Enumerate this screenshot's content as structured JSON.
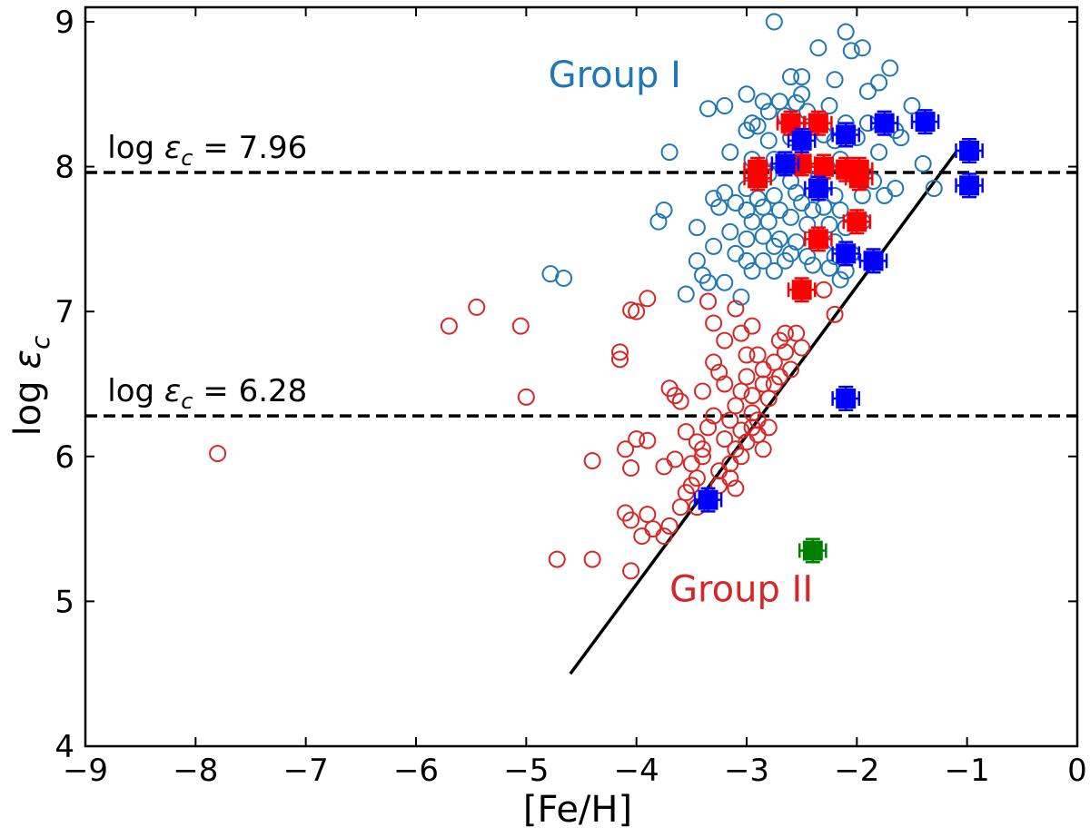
{
  "chart_data": {
    "type": "scatter",
    "xlabel": "[Fe/H]",
    "ylabel_main": "log ",
    "ylabel_symbol": "ε",
    "ylabel_sub": "c",
    "xlim": [
      -9,
      0
    ],
    "ylim": [
      4,
      9.1
    ],
    "xticks": [
      -9,
      -8,
      -7,
      -6,
      -5,
      -4,
      -3,
      -2,
      -1,
      0
    ],
    "xtick_labels": [
      "−9",
      "−8",
      "−7",
      "−6",
      "−5",
      "−4",
      "−3",
      "−2",
      "−1",
      "0"
    ],
    "yticks": [
      4,
      5,
      6,
      7,
      8,
      9
    ],
    "ytick_labels": [
      "4",
      "5",
      "6",
      "7",
      "8",
      "9"
    ],
    "colors": {
      "group1": "#1f77b4",
      "group2": "#d62728",
      "red_marker": "#ff0000",
      "blue_marker": "#0000ff",
      "green_marker": "#008000",
      "line": "#000000"
    },
    "reference_lines": [
      {
        "y": 7.96,
        "prefix": "log ",
        "symbol": "ε",
        "sub": "c",
        "text": " = 7.96",
        "label_x": -8.8
      },
      {
        "y": 6.28,
        "prefix": "log ",
        "symbol": "ε",
        "sub": "c",
        "text": " = 6.28",
        "label_x": -8.8
      }
    ],
    "trend_line": {
      "x": [
        -4.6,
        -1.1
      ],
      "y": [
        4.5,
        8.1
      ]
    },
    "annotations": [
      {
        "text": "Group I",
        "x": -4.8,
        "y": 8.55,
        "color": "#1f77b4"
      },
      {
        "text": "Group II",
        "x": -3.7,
        "y": 5.0,
        "color": "#d62728"
      }
    ],
    "series": [
      {
        "name": "Group I",
        "marker": "open-circle",
        "color": "#1f77b4",
        "points": [
          [
            -2.75,
            9.0
          ],
          [
            -2.1,
            8.93
          ],
          [
            -2.05,
            8.8
          ],
          [
            -1.95,
            8.82
          ],
          [
            -2.35,
            8.82
          ],
          [
            -1.7,
            8.68
          ],
          [
            -2.5,
            8.62
          ],
          [
            -2.6,
            8.62
          ],
          [
            -2.2,
            8.6
          ],
          [
            -1.8,
            8.58
          ],
          [
            -1.9,
            8.52
          ],
          [
            -3.0,
            8.5
          ],
          [
            -3.2,
            8.42
          ],
          [
            -2.5,
            8.5
          ],
          [
            -2.7,
            8.45
          ],
          [
            -2.8,
            8.38
          ],
          [
            -2.85,
            8.45
          ],
          [
            -2.55,
            8.44
          ],
          [
            -3.35,
            8.4
          ],
          [
            -2.25,
            8.42
          ],
          [
            -2.65,
            8.35
          ],
          [
            -2.45,
            8.38
          ],
          [
            -2.95,
            8.3
          ],
          [
            -3.0,
            8.25
          ],
          [
            -2.35,
            8.3
          ],
          [
            -2.1,
            8.3
          ],
          [
            -1.9,
            8.3
          ],
          [
            -1.5,
            8.42
          ],
          [
            -1.65,
            8.25
          ],
          [
            -2.9,
            8.28
          ],
          [
            -2.8,
            8.18
          ],
          [
            -2.6,
            8.2
          ],
          [
            -2.3,
            8.22
          ],
          [
            -2.2,
            8.18
          ],
          [
            -2.0,
            8.2
          ],
          [
            -1.6,
            8.2
          ],
          [
            -3.7,
            8.1
          ],
          [
            -3.15,
            8.1
          ],
          [
            -2.95,
            8.05
          ],
          [
            -2.75,
            8.05
          ],
          [
            -2.5,
            8.0
          ],
          [
            -2.15,
            8.05
          ],
          [
            -1.8,
            8.1
          ],
          [
            -1.4,
            8.02
          ],
          [
            -2.8,
            7.95
          ],
          [
            -2.6,
            7.9
          ],
          [
            -2.35,
            7.92
          ],
          [
            -2.05,
            7.95
          ],
          [
            -1.85,
            7.9
          ],
          [
            -1.65,
            7.85
          ],
          [
            -1.3,
            7.85
          ],
          [
            -3.0,
            7.85
          ],
          [
            -3.2,
            7.82
          ],
          [
            -2.9,
            7.78
          ],
          [
            -2.75,
            7.8
          ],
          [
            -2.55,
            7.82
          ],
          [
            -2.2,
            7.8
          ],
          [
            -1.95,
            7.8
          ],
          [
            -1.75,
            7.8
          ],
          [
            -3.3,
            7.78
          ],
          [
            -3.25,
            7.72
          ],
          [
            -3.1,
            7.75
          ],
          [
            -3.0,
            7.7
          ],
          [
            -2.85,
            7.72
          ],
          [
            -2.7,
            7.7
          ],
          [
            -2.5,
            7.75
          ],
          [
            -2.4,
            7.7
          ],
          [
            -2.3,
            7.72
          ],
          [
            -2.15,
            7.7
          ],
          [
            -3.75,
            7.7
          ],
          [
            -3.8,
            7.62
          ],
          [
            -2.95,
            7.62
          ],
          [
            -2.8,
            7.62
          ],
          [
            -2.6,
            7.65
          ],
          [
            -2.45,
            7.6
          ],
          [
            -2.25,
            7.6
          ],
          [
            -2.1,
            7.58
          ],
          [
            -1.95,
            7.62
          ],
          [
            -3.45,
            7.58
          ],
          [
            -3.15,
            7.55
          ],
          [
            -3.0,
            7.5
          ],
          [
            -2.85,
            7.52
          ],
          [
            -2.7,
            7.5
          ],
          [
            -2.55,
            7.48
          ],
          [
            -2.35,
            7.5
          ],
          [
            -2.2,
            7.48
          ],
          [
            -3.3,
            7.45
          ],
          [
            -3.1,
            7.4
          ],
          [
            -2.75,
            7.45
          ],
          [
            -2.6,
            7.4
          ],
          [
            -2.45,
            7.38
          ],
          [
            -2.2,
            7.38
          ],
          [
            -2.05,
            7.4
          ],
          [
            -3.45,
            7.35
          ],
          [
            -3.0,
            7.35
          ],
          [
            -2.85,
            7.35
          ],
          [
            -2.65,
            7.35
          ],
          [
            -2.4,
            7.32
          ],
          [
            -2.25,
            7.3
          ],
          [
            -2.75,
            7.28
          ],
          [
            -2.1,
            7.28
          ],
          [
            -3.4,
            7.25
          ],
          [
            -3.35,
            7.2
          ],
          [
            -3.2,
            7.2
          ],
          [
            -4.78,
            7.26
          ],
          [
            -4.66,
            7.23
          ],
          [
            -3.55,
            7.12
          ],
          [
            -3.05,
            7.1
          ],
          [
            -2.95,
            7.28
          ],
          [
            -2.15,
            7.22
          ]
        ]
      },
      {
        "name": "Group II",
        "marker": "open-circle",
        "color": "#d62728",
        "points": [
          [
            -7.8,
            6.02
          ],
          [
            -5.7,
            6.9
          ],
          [
            -5.45,
            7.03
          ],
          [
            -5.05,
            6.9
          ],
          [
            -5.0,
            6.41
          ],
          [
            -4.4,
            5.97
          ],
          [
            -4.72,
            5.29
          ],
          [
            -4.4,
            5.29
          ],
          [
            -4.05,
            5.21
          ],
          [
            -4.0,
            7.0
          ],
          [
            -4.05,
            7.01
          ],
          [
            -3.9,
            7.09
          ],
          [
            -4.15,
            6.72
          ],
          [
            -4.15,
            6.67
          ],
          [
            -4.1,
            6.05
          ],
          [
            -4.0,
            6.12
          ],
          [
            -4.05,
            5.92
          ],
          [
            -3.9,
            6.11
          ],
          [
            -4.1,
            5.61
          ],
          [
            -4.05,
            5.56
          ],
          [
            -3.9,
            5.6
          ],
          [
            -3.85,
            5.5
          ],
          [
            -3.75,
            5.45
          ],
          [
            -3.95,
            5.45
          ],
          [
            -3.7,
            5.52
          ],
          [
            -3.75,
            5.93
          ],
          [
            -3.65,
            5.98
          ],
          [
            -3.7,
            6.47
          ],
          [
            -3.65,
            6.42
          ],
          [
            -3.6,
            6.38
          ],
          [
            -3.55,
            6.17
          ],
          [
            -3.55,
            5.75
          ],
          [
            -3.5,
            5.8
          ],
          [
            -3.45,
            5.85
          ],
          [
            -3.45,
            6.1
          ],
          [
            -3.4,
            6.05
          ],
          [
            -3.4,
            6.45
          ],
          [
            -3.35,
            7.07
          ],
          [
            -3.3,
            6.92
          ],
          [
            -3.3,
            6.65
          ],
          [
            -3.25,
            6.58
          ],
          [
            -3.2,
            6.8
          ],
          [
            -3.2,
            6.5
          ],
          [
            -3.15,
            6.25
          ],
          [
            -3.1,
            6.05
          ],
          [
            -3.05,
            6.0
          ],
          [
            -3.0,
            6.1
          ],
          [
            -2.95,
            6.2
          ],
          [
            -3.1,
            7.02
          ],
          [
            -3.05,
            6.85
          ],
          [
            -2.95,
            6.9
          ],
          [
            -2.9,
            6.7
          ],
          [
            -2.85,
            6.6
          ],
          [
            -2.8,
            6.4
          ],
          [
            -2.75,
            6.5
          ],
          [
            -2.7,
            6.8
          ],
          [
            -2.65,
            6.72
          ],
          [
            -2.6,
            6.6
          ],
          [
            -2.55,
            6.85
          ],
          [
            -2.5,
            6.75
          ],
          [
            -3.0,
            6.55
          ],
          [
            -3.05,
            6.45
          ],
          [
            -3.1,
            6.35
          ],
          [
            -2.95,
            6.3
          ],
          [
            -2.9,
            6.15
          ],
          [
            -2.85,
            6.05
          ],
          [
            -2.8,
            6.2
          ],
          [
            -3.15,
            5.95
          ],
          [
            -3.25,
            5.9
          ],
          [
            -3.3,
            6.28
          ],
          [
            -3.35,
            6.2
          ],
          [
            -3.2,
            6.12
          ],
          [
            -3.05,
            6.18
          ],
          [
            -2.9,
            6.25
          ],
          [
            -3.45,
            5.65
          ],
          [
            -3.35,
            5.7
          ],
          [
            -3.25,
            5.8
          ],
          [
            -3.15,
            5.85
          ],
          [
            -3.1,
            5.78
          ],
          [
            -3.6,
            5.65
          ],
          [
            -3.5,
            5.95
          ],
          [
            -3.4,
            6.0
          ],
          [
            -2.3,
            7.15
          ],
          [
            -2.2,
            6.98
          ],
          [
            -2.65,
            6.85
          ],
          [
            -2.75,
            6.65
          ],
          [
            -2.7,
            6.55
          ],
          [
            -3.0,
            6.7
          ],
          [
            -2.85,
            6.5
          ],
          [
            -2.95,
            6.42
          ]
        ]
      },
      {
        "name": "Red filled squares",
        "marker": "filled-square-errorbar",
        "color": "#ff0000",
        "xerr": 0.12,
        "yerr": 0.08,
        "points": [
          [
            -2.6,
            8.3
          ],
          [
            -2.35,
            8.3
          ],
          [
            -2.9,
            7.98
          ],
          [
            -2.5,
            8.02
          ],
          [
            -2.3,
            8.0
          ],
          [
            -2.1,
            7.98
          ],
          [
            -1.98,
            7.98
          ],
          [
            -2.9,
            7.92
          ],
          [
            -1.98,
            7.92
          ],
          [
            -2.0,
            7.62
          ],
          [
            -2.35,
            7.5
          ],
          [
            -2.5,
            7.15
          ]
        ]
      },
      {
        "name": "Blue filled squares",
        "marker": "filled-square-errorbar",
        "color": "#0000ff",
        "xerr": 0.12,
        "yerr": 0.08,
        "points": [
          [
            -1.75,
            8.3
          ],
          [
            -1.38,
            8.31
          ],
          [
            -0.98,
            8.11
          ],
          [
            -0.98,
            7.87
          ],
          [
            -2.1,
            8.22
          ],
          [
            -2.5,
            8.18
          ],
          [
            -2.65,
            8.02
          ],
          [
            -2.35,
            7.85
          ],
          [
            -2.1,
            7.4
          ],
          [
            -1.85,
            7.35
          ],
          [
            -2.1,
            6.4
          ],
          [
            -3.35,
            5.7
          ]
        ]
      },
      {
        "name": "Green filled square",
        "marker": "filled-square-errorbar",
        "color": "#008000",
        "xerr": 0.12,
        "yerr": 0.08,
        "points": [
          [
            -2.4,
            5.35
          ]
        ]
      }
    ]
  }
}
